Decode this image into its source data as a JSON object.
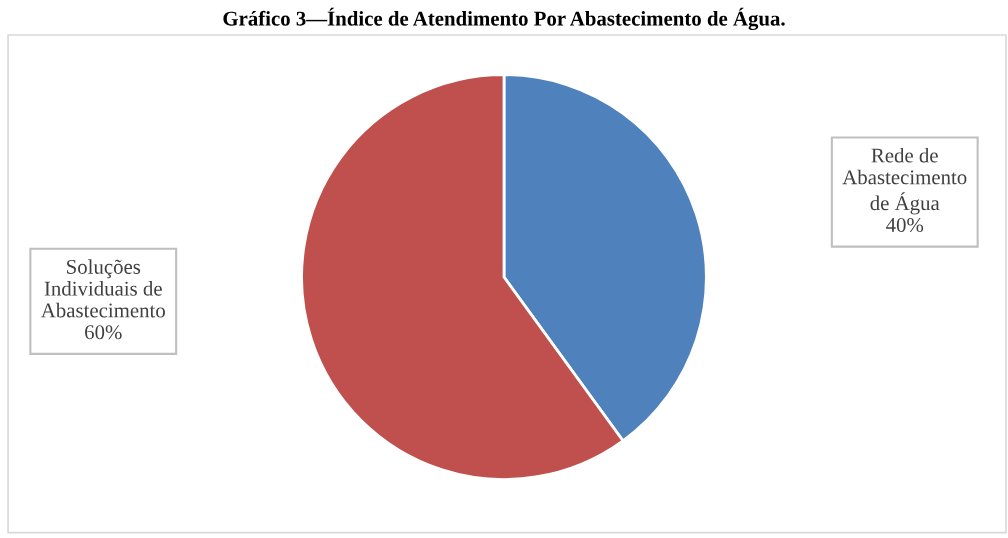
{
  "chart_data": {
    "type": "pie",
    "title": "Gráfico 3—Índice de Atendimento Por Abastecimento de Água.",
    "categories": [
      "Rede de\nAbastecimento\nde Água",
      "Soluções\nIndividuais de\nAbastecimento"
    ],
    "values": [
      40,
      60
    ],
    "value_labels": [
      "40%",
      "60%"
    ],
    "colors": [
      "#4f81bd",
      "#c0504d"
    ]
  }
}
